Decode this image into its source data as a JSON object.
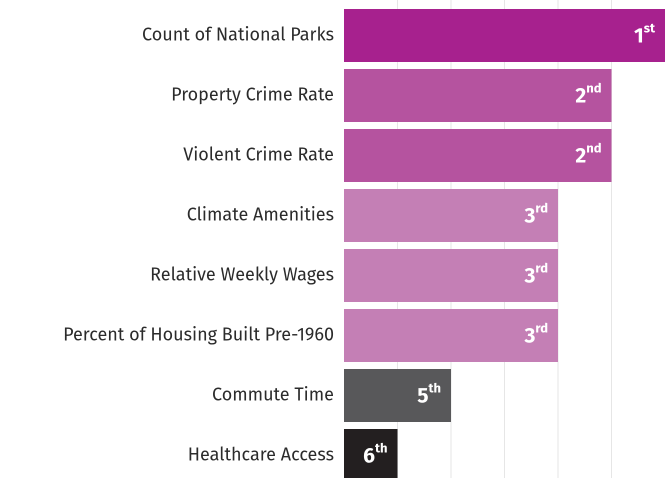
{
  "chart_data": {
    "type": "bar",
    "orientation": "horizontal",
    "categories": [
      "Count of National Parks",
      "Property Crime Rate",
      "Violent Crime Rate",
      "Climate Amenities",
      "Relative Weekly Wages",
      "Percent of Housing Built Pre-1960",
      "Commute Time",
      "Healthcare Access"
    ],
    "values": [
      1,
      2,
      2,
      3,
      3,
      3,
      5,
      6
    ],
    "value_labels": [
      "1st",
      "2nd",
      "2nd",
      "3rd",
      "3rd",
      "3rd",
      "5th",
      "6th"
    ],
    "colors": [
      "#a7218e",
      "#b5539f",
      "#b5539f",
      "#c47fb5",
      "#c47fb5",
      "#c47fb5",
      "#58585a",
      "#231f20"
    ],
    "xlim": [
      7,
      1
    ],
    "xticks": [
      6,
      5,
      4,
      3,
      2
    ],
    "grid": true
  }
}
